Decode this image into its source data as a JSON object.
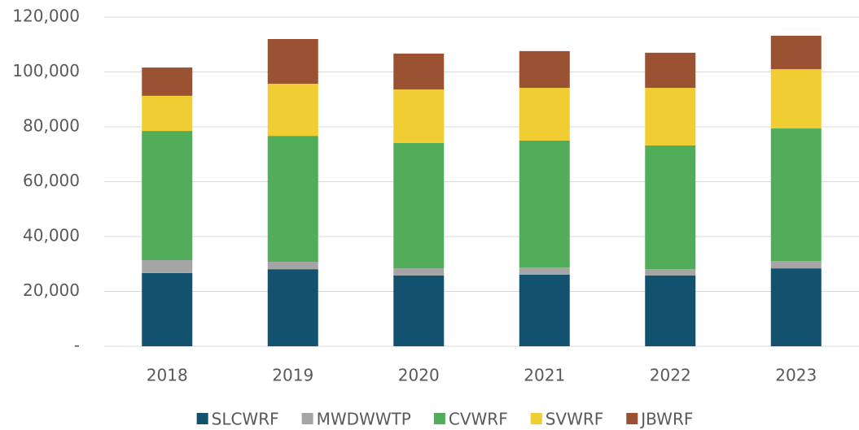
{
  "chart_data": {
    "type": "stacked_bar",
    "categories": [
      "2018",
      "2019",
      "2020",
      "2021",
      "2022",
      "2023"
    ],
    "series": [
      {
        "name": "SLCWRF",
        "color": "#13526e",
        "values": [
          26700,
          28100,
          25800,
          26100,
          25800,
          28400
        ]
      },
      {
        "name": "MWDWWTP",
        "color": "#a5a5a5",
        "values": [
          4700,
          2700,
          2600,
          2600,
          2300,
          2700
        ]
      },
      {
        "name": "CVWRF",
        "color": "#52ad5a",
        "values": [
          47100,
          45900,
          45700,
          46300,
          45100,
          48300
        ]
      },
      {
        "name": "SVWRF",
        "color": "#f0cd32",
        "values": [
          12800,
          19000,
          19500,
          19200,
          21000,
          21600
        ]
      },
      {
        "name": "JBWRF",
        "color": "#9a5232",
        "values": [
          10300,
          16300,
          13100,
          13400,
          12800,
          12200
        ]
      }
    ],
    "ylim": [
      0,
      120000
    ],
    "yticks": [
      {
        "value": 0,
        "label": "-"
      },
      {
        "value": 20000,
        "label": "20,000"
      },
      {
        "value": 40000,
        "label": "40,000"
      },
      {
        "value": 60000,
        "label": "60,000"
      },
      {
        "value": 80000,
        "label": "80,000"
      },
      {
        "value": 100000,
        "label": "100,000"
      },
      {
        "value": 120000,
        "label": "120,000"
      }
    ],
    "grid": true,
    "legend": "bottom"
  }
}
